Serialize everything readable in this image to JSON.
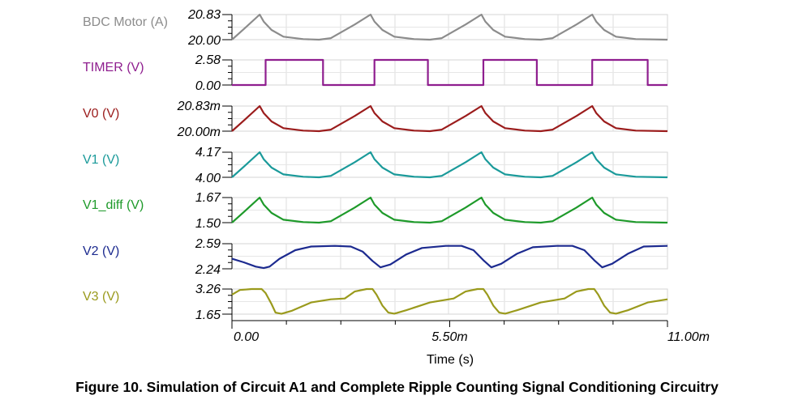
{
  "caption": "Figure 10. Simulation of Circuit A1 and Complete Ripple Counting Signal Conditioning Circuitry",
  "chart_data": {
    "type": "line",
    "xlabel": "Time (s)",
    "x_ticks": [
      "0.00",
      "5.50m",
      "11.00m"
    ],
    "xlim": [
      0,
      11
    ],
    "x_unit": "ms",
    "grid": true,
    "panels": [
      {
        "name": "BDC Motor (A)",
        "color": "#8c8c8c",
        "ylim": [
          20.0,
          20.83
        ],
        "y_ticks": [
          "20.83",
          "20.00"
        ],
        "x": [
          0,
          0.3,
          0.7,
          0.8,
          1.0,
          1.3,
          1.8,
          2.2,
          2.5,
          3.1,
          3.5,
          3.6,
          3.8,
          4.1,
          4.6,
          5.0,
          5.3,
          5.9,
          6.3,
          6.4,
          6.6,
          6.9,
          7.4,
          7.8,
          8.1,
          8.7,
          9.1,
          9.2,
          9.4,
          9.7,
          10.2,
          11.0
        ],
        "y": [
          20.0,
          20.35,
          20.83,
          20.6,
          20.32,
          20.1,
          20.02,
          20.0,
          20.05,
          20.5,
          20.83,
          20.6,
          20.32,
          20.1,
          20.02,
          20.0,
          20.05,
          20.5,
          20.83,
          20.6,
          20.32,
          20.1,
          20.02,
          20.0,
          20.05,
          20.5,
          20.83,
          20.6,
          20.32,
          20.1,
          20.02,
          20.0
        ]
      },
      {
        "name": "TIMER (V)",
        "color": "#8f1e8f",
        "ylim": [
          0,
          2.58
        ],
        "y_ticks": [
          "2.58",
          "0.00"
        ],
        "x": [
          0,
          0.85,
          0.85,
          2.3,
          2.3,
          3.6,
          3.6,
          4.95,
          4.95,
          6.35,
          6.35,
          7.7,
          7.7,
          9.1,
          9.1,
          10.5,
          10.5,
          11.0
        ],
        "y": [
          0,
          0,
          2.58,
          2.58,
          0,
          0,
          2.58,
          2.58,
          0,
          0,
          2.58,
          2.58,
          0,
          0,
          2.58,
          2.58,
          0,
          0
        ]
      },
      {
        "name": "V0 (V)",
        "color": "#9b1c1c",
        "ylim": [
          20.0,
          20.83
        ],
        "y_ticks": [
          "20.83m",
          "20.00m"
        ],
        "x": [
          0,
          0.3,
          0.7,
          0.8,
          1.0,
          1.3,
          1.8,
          2.2,
          2.5,
          3.1,
          3.5,
          3.6,
          3.8,
          4.1,
          4.6,
          5.0,
          5.3,
          5.9,
          6.3,
          6.4,
          6.6,
          6.9,
          7.4,
          7.8,
          8.1,
          8.7,
          9.1,
          9.2,
          9.4,
          9.7,
          10.2,
          11.0
        ],
        "y": [
          20.0,
          20.35,
          20.83,
          20.6,
          20.32,
          20.1,
          20.02,
          20.0,
          20.05,
          20.5,
          20.83,
          20.6,
          20.32,
          20.1,
          20.02,
          20.0,
          20.05,
          20.5,
          20.83,
          20.6,
          20.32,
          20.1,
          20.02,
          20.0,
          20.05,
          20.5,
          20.83,
          20.6,
          20.32,
          20.1,
          20.02,
          20.0
        ]
      },
      {
        "name": "V1 (V)",
        "color": "#1a9a9a",
        "ylim": [
          4.0,
          4.17
        ],
        "y_ticks": [
          "4.17",
          "4.00"
        ],
        "x": [
          0,
          0.3,
          0.7,
          0.8,
          1.0,
          1.3,
          1.8,
          2.2,
          2.5,
          3.1,
          3.5,
          3.6,
          3.8,
          4.1,
          4.6,
          5.0,
          5.3,
          5.9,
          6.3,
          6.4,
          6.6,
          6.9,
          7.4,
          7.8,
          8.1,
          8.7,
          9.1,
          9.2,
          9.4,
          9.7,
          10.2,
          11.0
        ],
        "y": [
          4.0,
          4.072,
          4.17,
          4.123,
          4.066,
          4.02,
          4.004,
          4.0,
          4.01,
          4.102,
          4.17,
          4.123,
          4.066,
          4.02,
          4.004,
          4.0,
          4.01,
          4.102,
          4.17,
          4.123,
          4.066,
          4.02,
          4.004,
          4.0,
          4.01,
          4.102,
          4.17,
          4.123,
          4.066,
          4.02,
          4.004,
          4.0
        ]
      },
      {
        "name": "V1_diff (V)",
        "color": "#1e9a2a",
        "ylim": [
          1.5,
          1.67
        ],
        "y_ticks": [
          "1.67",
          "1.50"
        ],
        "x": [
          0,
          0.3,
          0.7,
          0.8,
          1.0,
          1.3,
          1.8,
          2.2,
          2.5,
          3.1,
          3.5,
          3.6,
          3.8,
          4.1,
          4.6,
          5.0,
          5.3,
          5.9,
          6.3,
          6.4,
          6.6,
          6.9,
          7.4,
          7.8,
          8.1,
          8.7,
          9.1,
          9.2,
          9.4,
          9.7,
          10.2,
          11.0
        ],
        "y": [
          1.5,
          1.572,
          1.67,
          1.623,
          1.566,
          1.52,
          1.504,
          1.5,
          1.51,
          1.602,
          1.67,
          1.623,
          1.566,
          1.52,
          1.504,
          1.5,
          1.51,
          1.602,
          1.67,
          1.623,
          1.566,
          1.52,
          1.504,
          1.5,
          1.51,
          1.602,
          1.67,
          1.623,
          1.566,
          1.52,
          1.504,
          1.5
        ]
      },
      {
        "name": "V2 (V)",
        "color": "#1c2a8f",
        "ylim": [
          2.24,
          2.59
        ],
        "y_ticks": [
          "2.59",
          "2.24"
        ],
        "x": [
          0,
          0.3,
          0.6,
          0.8,
          0.95,
          1.2,
          1.6,
          2.0,
          2.6,
          3.0,
          3.3,
          3.55,
          3.75,
          4.0,
          4.4,
          4.8,
          5.4,
          5.8,
          6.1,
          6.35,
          6.55,
          6.8,
          7.2,
          7.6,
          8.2,
          8.6,
          8.9,
          9.15,
          9.35,
          9.6,
          10.0,
          10.4,
          11.0
        ],
        "y": [
          2.38,
          2.33,
          2.27,
          2.25,
          2.27,
          2.38,
          2.5,
          2.55,
          2.56,
          2.55,
          2.48,
          2.35,
          2.26,
          2.3,
          2.44,
          2.53,
          2.56,
          2.56,
          2.5,
          2.36,
          2.26,
          2.31,
          2.45,
          2.54,
          2.56,
          2.56,
          2.5,
          2.36,
          2.26,
          2.31,
          2.45,
          2.55,
          2.56
        ]
      },
      {
        "name": "V3 (V)",
        "color": "#9a9a1c",
        "ylim": [
          1.65,
          3.26
        ],
        "y_ticks": [
          "3.26",
          "1.65"
        ],
        "x": [
          0,
          0.2,
          0.5,
          0.75,
          0.85,
          1.0,
          1.1,
          1.25,
          1.5,
          2.0,
          2.5,
          2.85,
          3.1,
          3.4,
          3.55,
          3.65,
          3.8,
          3.95,
          4.1,
          4.4,
          5.0,
          5.6,
          5.9,
          6.2,
          6.35,
          6.45,
          6.6,
          6.75,
          6.9,
          7.2,
          7.8,
          8.4,
          8.7,
          9.0,
          9.15,
          9.25,
          9.4,
          9.55,
          9.7,
          10.0,
          10.5,
          11.0
        ],
        "y": [
          2.9,
          3.2,
          3.26,
          3.26,
          3.0,
          2.3,
          1.75,
          1.67,
          1.85,
          2.4,
          2.6,
          2.65,
          3.1,
          3.26,
          3.26,
          2.9,
          2.2,
          1.75,
          1.68,
          1.9,
          2.4,
          2.65,
          3.1,
          3.26,
          3.26,
          2.9,
          2.2,
          1.75,
          1.68,
          1.9,
          2.4,
          2.65,
          3.1,
          3.26,
          3.26,
          2.9,
          2.2,
          1.75,
          1.68,
          1.9,
          2.4,
          2.6
        ]
      }
    ]
  }
}
